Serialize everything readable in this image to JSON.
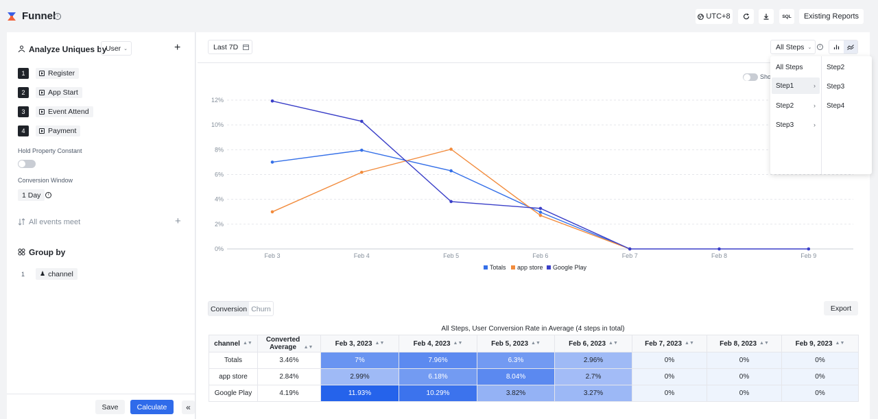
{
  "header": {
    "title": "Funnel",
    "timezone": "UTC+8",
    "sql_label": "SQL",
    "existing_reports": "Existing Reports"
  },
  "left": {
    "analyze_label": "Analyze Uniques by",
    "analyze_value": "User",
    "steps": [
      {
        "num": "1",
        "name": "Register"
      },
      {
        "num": "2",
        "name": "App Start"
      },
      {
        "num": "3",
        "name": "Event Attend"
      },
      {
        "num": "4",
        "name": "Payment"
      }
    ],
    "hold_label": "Hold Property Constant",
    "window_label": "Conversion Window",
    "window_value": "1 Day",
    "all_events": "All events meet",
    "group_by": "Group by",
    "group_num": "1",
    "group_value": "channel",
    "save": "Save",
    "calculate": "Calculate"
  },
  "main": {
    "date_range": "Last 7D",
    "steps_select": "All Steps",
    "show_label": "Sho",
    "tab_conversion": "Conversion",
    "tab_churn": "Churn",
    "export": "Export",
    "table_caption": "All Steps, User Conversion Rate in Average (4 steps in total)"
  },
  "dropdown": {
    "col1": [
      "All Steps",
      "Step1",
      "Step2",
      "Step3"
    ],
    "col2": [
      "Step2",
      "Step3",
      "Step4"
    ]
  },
  "chart_data": {
    "type": "line",
    "x": [
      "Feb 3",
      "Feb 4",
      "Feb 5",
      "Feb 6",
      "Feb 7",
      "Feb 8",
      "Feb 9"
    ],
    "yticks": [
      "0%",
      "2%",
      "4%",
      "6%",
      "8%",
      "10%",
      "12%"
    ],
    "ylim": [
      0,
      12
    ],
    "series": [
      {
        "name": "Totals",
        "color": "#3570e8",
        "values": [
          7,
          7.96,
          6.3,
          2.96,
          0,
          null,
          null
        ]
      },
      {
        "name": "app store",
        "color": "#f28b3c",
        "values": [
          2.99,
          6.18,
          8.04,
          2.7,
          0,
          null,
          null
        ]
      },
      {
        "name": "Google Play",
        "color": "#3a3fc8",
        "values": [
          11.93,
          10.29,
          3.82,
          3.27,
          0,
          0,
          0
        ]
      }
    ],
    "legend": "bottom-center",
    "grid": true
  },
  "table": {
    "headers": [
      "channel",
      "Converted Average",
      "Feb 3, 2023",
      "Feb 4, 2023",
      "Feb 5, 2023",
      "Feb 6, 2023",
      "Feb 7, 2023",
      "Feb 8, 2023",
      "Feb 9, 2023"
    ],
    "rows": [
      {
        "channel": "Totals",
        "avg": "3.46%",
        "cells": [
          "7%",
          "7.96%",
          "6.3%",
          "2.96%",
          "0%",
          "0%",
          "0%"
        ],
        "shades": [
          0.58,
          0.66,
          0.53,
          0.25,
          0,
          0,
          0
        ]
      },
      {
        "channel": "app store",
        "avg": "2.84%",
        "cells": [
          "2.99%",
          "6.18%",
          "8.04%",
          "2.7%",
          "0%",
          "0%",
          "0%"
        ],
        "shades": [
          0.25,
          0.52,
          0.67,
          0.23,
          0,
          0,
          0
        ]
      },
      {
        "channel": "Google Play",
        "avg": "4.19%",
        "cells": [
          "11.93%",
          "10.29%",
          "3.82%",
          "3.27%",
          "0%",
          "0%",
          "0%"
        ],
        "shades": [
          1,
          0.86,
          0.32,
          0.27,
          0,
          0,
          0
        ]
      }
    ]
  }
}
